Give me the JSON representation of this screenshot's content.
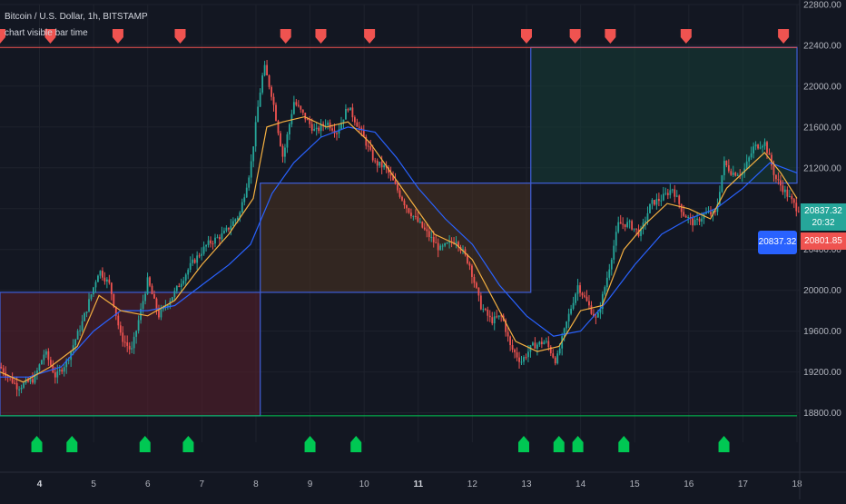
{
  "legend": {
    "title": "Bitcoin / U.S. Dollar, 1h, BITSTAMP",
    "subtitle": "chart visible bar time"
  },
  "price_labels": {
    "close": "20837.32",
    "countdown": "20:32",
    "open": "20801.85",
    "crosshair": "20837.32"
  },
  "colors": {
    "background": "#131722",
    "up_candle": "#26a69a",
    "down_candle": "#ef5350",
    "fast_ma": "#f5b041",
    "slow_ma": "#2962ff",
    "upper_line": "#ef5350",
    "lower_line": "#00c853",
    "box_red": "#5b1f29",
    "box_orange": "#4d3320",
    "box_green": "#163e37",
    "grid": "#1e222d",
    "axis_text": "#b2b5be"
  },
  "chart_data": {
    "type": "candlestick",
    "symbol": "BTCUSD",
    "exchange": "BITSTAMP",
    "interval": "1h",
    "y_axis": {
      "min": 18600,
      "max": 22800,
      "ticks": [
        "22800.00",
        "22400.00",
        "22000.00",
        "21600.00",
        "21200.00",
        "20800.00",
        "20400.00",
        "20000.00",
        "19600.00",
        "19200.00",
        "18800.00"
      ]
    },
    "x_axis": {
      "min": 3.27,
      "max": 18.05,
      "ticks": [
        {
          "label": "4",
          "x": 4,
          "bold": true
        },
        {
          "label": "5",
          "x": 5,
          "bold": false
        },
        {
          "label": "6",
          "x": 6,
          "bold": false
        },
        {
          "label": "7",
          "x": 7,
          "bold": false
        },
        {
          "label": "8",
          "x": 8,
          "bold": false
        },
        {
          "label": "9",
          "x": 9,
          "bold": false
        },
        {
          "label": "10",
          "x": 10,
          "bold": false
        },
        {
          "label": "11",
          "x": 11,
          "bold": true
        },
        {
          "label": "12",
          "x": 12,
          "bold": false
        },
        {
          "label": "13",
          "x": 13,
          "bold": false
        },
        {
          "label": "14",
          "x": 14,
          "bold": false
        },
        {
          "label": "15",
          "x": 15,
          "bold": false
        },
        {
          "label": "16",
          "x": 16,
          "bold": false
        },
        {
          "label": "17",
          "x": 17,
          "bold": false
        },
        {
          "label": "18",
          "x": 18,
          "bold": false
        }
      ]
    },
    "price_path": [
      [
        3.27,
        19250
      ],
      [
        3.6,
        19050
      ],
      [
        3.9,
        19130
      ],
      [
        4.1,
        19400
      ],
      [
        4.3,
        19150
      ],
      [
        4.5,
        19300
      ],
      [
        4.8,
        19700
      ],
      [
        5.1,
        20200
      ],
      [
        5.3,
        20050
      ],
      [
        5.5,
        19550
      ],
      [
        5.7,
        19400
      ],
      [
        6.0,
        20100
      ],
      [
        6.2,
        19750
      ],
      [
        6.5,
        19980
      ],
      [
        6.8,
        20250
      ],
      [
        7.1,
        20450
      ],
      [
        7.4,
        20550
      ],
      [
        7.7,
        20750
      ],
      [
        7.9,
        21200
      ],
      [
        8.05,
        21850
      ],
      [
        8.15,
        22200
      ],
      [
        8.3,
        21900
      ],
      [
        8.5,
        21300
      ],
      [
        8.7,
        21850
      ],
      [
        8.9,
        21700
      ],
      [
        9.1,
        21550
      ],
      [
        9.3,
        21650
      ],
      [
        9.5,
        21550
      ],
      [
        9.7,
        21800
      ],
      [
        9.9,
        21600
      ],
      [
        10.2,
        21250
      ],
      [
        10.4,
        21200
      ],
      [
        10.6,
        21000
      ],
      [
        10.8,
        20800
      ],
      [
        11.1,
        20600
      ],
      [
        11.4,
        20400
      ],
      [
        11.7,
        20500
      ],
      [
        11.95,
        20250
      ],
      [
        12.15,
        19850
      ],
      [
        12.35,
        19700
      ],
      [
        12.55,
        19750
      ],
      [
        12.7,
        19450
      ],
      [
        12.9,
        19300
      ],
      [
        13.1,
        19450
      ],
      [
        13.35,
        19500
      ],
      [
        13.55,
        19300
      ],
      [
        13.75,
        19700
      ],
      [
        13.95,
        20050
      ],
      [
        14.1,
        19900
      ],
      [
        14.3,
        19700
      ],
      [
        14.5,
        20150
      ],
      [
        14.7,
        20650
      ],
      [
        14.9,
        20650
      ],
      [
        15.1,
        20550
      ],
      [
        15.3,
        20850
      ],
      [
        15.5,
        20900
      ],
      [
        15.7,
        21000
      ],
      [
        15.9,
        20750
      ],
      [
        16.1,
        20650
      ],
      [
        16.3,
        20750
      ],
      [
        16.5,
        20750
      ],
      [
        16.65,
        21250
      ],
      [
        16.8,
        21150
      ],
      [
        17.0,
        21150
      ],
      [
        17.2,
        21400
      ],
      [
        17.4,
        21450
      ],
      [
        17.6,
        21100
      ],
      [
        17.8,
        20950
      ],
      [
        18.0,
        20800
      ]
    ],
    "fast_ma_path": [
      [
        3.27,
        19200
      ],
      [
        3.7,
        19100
      ],
      [
        4.2,
        19250
      ],
      [
        4.7,
        19450
      ],
      [
        5.1,
        19950
      ],
      [
        5.5,
        19800
      ],
      [
        6.0,
        19750
      ],
      [
        6.5,
        19900
      ],
      [
        7.0,
        20250
      ],
      [
        7.5,
        20550
      ],
      [
        7.95,
        20900
      ],
      [
        8.2,
        21600
      ],
      [
        8.5,
        21650
      ],
      [
        8.9,
        21700
      ],
      [
        9.3,
        21600
      ],
      [
        9.7,
        21650
      ],
      [
        10.1,
        21450
      ],
      [
        10.5,
        21150
      ],
      [
        10.9,
        20850
      ],
      [
        11.3,
        20550
      ],
      [
        11.7,
        20450
      ],
      [
        12.0,
        20300
      ],
      [
        12.4,
        19900
      ],
      [
        12.8,
        19500
      ],
      [
        13.2,
        19400
      ],
      [
        13.6,
        19450
      ],
      [
        14.0,
        19800
      ],
      [
        14.4,
        19850
      ],
      [
        14.8,
        20400
      ],
      [
        15.2,
        20650
      ],
      [
        15.6,
        20850
      ],
      [
        16.0,
        20800
      ],
      [
        16.4,
        20700
      ],
      [
        16.7,
        21000
      ],
      [
        17.1,
        21200
      ],
      [
        17.4,
        21350
      ],
      [
        17.7,
        21150
      ],
      [
        18.0,
        20900
      ]
    ],
    "slow_ma_path": [
      [
        3.27,
        19150
      ],
      [
        3.8,
        19150
      ],
      [
        4.4,
        19250
      ],
      [
        5.0,
        19600
      ],
      [
        5.5,
        19800
      ],
      [
        6.0,
        19800
      ],
      [
        6.5,
        19850
      ],
      [
        7.0,
        20050
      ],
      [
        7.5,
        20250
      ],
      [
        7.9,
        20450
      ],
      [
        8.3,
        20950
      ],
      [
        8.7,
        21250
      ],
      [
        9.2,
        21500
      ],
      [
        9.7,
        21600
      ],
      [
        10.2,
        21550
      ],
      [
        10.6,
        21300
      ],
      [
        11.0,
        21000
      ],
      [
        11.5,
        20700
      ],
      [
        12.0,
        20450
      ],
      [
        12.5,
        20050
      ],
      [
        13.0,
        19750
      ],
      [
        13.5,
        19550
      ],
      [
        14.0,
        19600
      ],
      [
        14.5,
        19900
      ],
      [
        15.0,
        20250
      ],
      [
        15.5,
        20550
      ],
      [
        16.0,
        20700
      ],
      [
        16.5,
        20800
      ],
      [
        17.0,
        21000
      ],
      [
        17.5,
        21250
      ],
      [
        18.0,
        21150
      ]
    ],
    "boxes": [
      {
        "x0": 3.27,
        "x1": 8.08,
        "y0": 18770,
        "y1": 19980,
        "color": "box_red"
      },
      {
        "x0": 8.08,
        "x1": 13.08,
        "y0": 19980,
        "y1": 21050,
        "color": "box_orange"
      },
      {
        "x0": 13.08,
        "x1": 18.0,
        "y0": 21050,
        "y1": 22380,
        "color": "box_green"
      }
    ],
    "upper_line": {
      "x0": 3.27,
      "x1": 18.0,
      "y": 22380
    },
    "lower_line": {
      "x0": 3.27,
      "x1": 18.0,
      "y": 18770
    },
    "sell_markers": [
      3.27,
      4.2,
      5.45,
      6.6,
      8.55,
      9.2,
      10.1,
      13.0,
      13.9,
      14.55,
      15.95,
      17.75
    ],
    "buy_markers": [
      3.95,
      4.6,
      5.95,
      6.75,
      9.0,
      9.85,
      12.95,
      13.6,
      13.95,
      14.8,
      16.65
    ],
    "last_close": 20837.32,
    "last_open": 20801.85
  }
}
